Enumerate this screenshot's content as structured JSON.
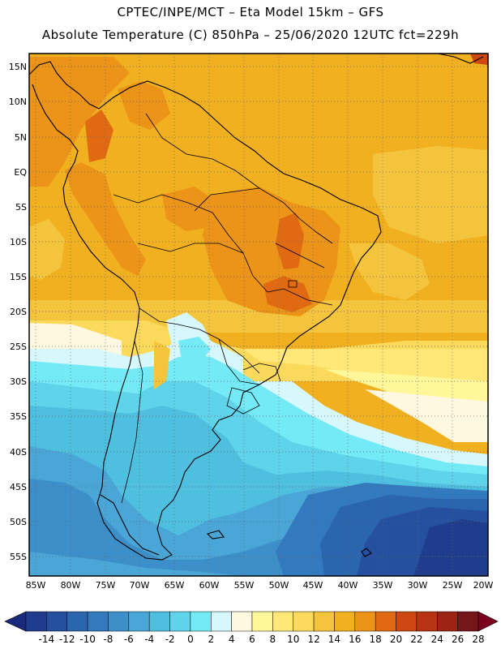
{
  "header": {
    "line1": "CPTEC/INPE/MCT –  Eta Model 15km – GFS",
    "line2": "Absolute Temperature (C) 850hPa – 25/06/2020 12UTC fct=229h"
  },
  "map": {
    "lat_labels": [
      "15N",
      "10N",
      "5N",
      "EQ",
      "5S",
      "10S",
      "15S",
      "20S",
      "25S",
      "30S",
      "35S",
      "40S",
      "45S",
      "50S",
      "55S"
    ],
    "lon_labels": [
      "85W",
      "80W",
      "75W",
      "70W",
      "65W",
      "60W",
      "55W",
      "50W",
      "45W",
      "40W",
      "35W",
      "30W",
      "25W",
      "20W"
    ]
  },
  "colorbar": {
    "labels": [
      "-14",
      "-12",
      "-10",
      "-8",
      "-6",
      "-4",
      "-2",
      "0",
      "2",
      "4",
      "6",
      "8",
      "10",
      "12",
      "14",
      "16",
      "18",
      "20",
      "22",
      "24",
      "26",
      "28"
    ],
    "colors": [
      "#1f3d8c",
      "#24509f",
      "#2a65ae",
      "#3379bd",
      "#3d8fc9",
      "#49a6d6",
      "#4fbfe0",
      "#5fd3ea",
      "#73eaf5",
      "#d6f7fb",
      "#fff8e0",
      "#fff799",
      "#ffe877",
      "#fbd95a",
      "#f4c53c",
      "#f1b01f",
      "#ec9417",
      "#e06a12",
      "#cc4810",
      "#b73312",
      "#9b2414",
      "#75171a"
    ],
    "low_arrow_color": "#1a2a7a",
    "high_arrow_color": "#7a0020"
  }
}
